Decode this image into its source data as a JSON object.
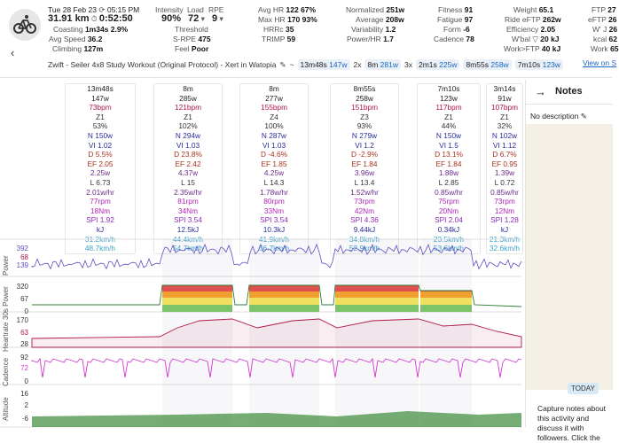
{
  "header": {
    "date": "Tue 28 Feb 23",
    "time": "05:15 PM",
    "distance": "31.91 km",
    "duration": "0:52:50",
    "coasting_label": "Coasting",
    "coasting_time": "1m34s",
    "coasting_pct": "2.9%",
    "avg_speed_label": "Avg Speed",
    "avg_speed": "36.2",
    "climbing_label": "Climbing",
    "climbing": "127m",
    "intensity_label": "Intensity",
    "intensity": "90%",
    "load_label": "Load",
    "load": "72",
    "rpe_label": "RPE",
    "rpe": "9",
    "threshold_label": "Threshold",
    "spre_label": "S-RPE",
    "spre": "475",
    "feel_label": "Feel",
    "feel": "Poor",
    "avghr_label": "Avg HR",
    "avghr": "122",
    "avghr_pct": "67%",
    "maxhr_label": "Max HR",
    "maxhr": "170",
    "maxhr_pct": "93%",
    "hrrc_label": "HRRc",
    "hrrc": "35",
    "trimp_label": "TRIMP",
    "trimp": "59",
    "normalized_label": "Normalized",
    "normalized": "251w",
    "average_label": "Average",
    "average": "208w",
    "variability_label": "Variability",
    "variability": "1.2",
    "powerhr_label": "Power/HR",
    "powerhr": "1.7",
    "fitness_label": "Fitness",
    "fitness": "91",
    "fatigue_label": "Fatigue",
    "fatigue": "97",
    "form_label": "Form",
    "form": "-6",
    "cadence_label": "Cadence",
    "cadence": "78",
    "weight_label": "Weight",
    "weight": "65.1",
    "rideeftp_label": "Ride eFTP",
    "rideeftp": "262w",
    "efficiency_label": "Efficiency",
    "efficiency": "2.05",
    "wbal_label": "W'bal ▽",
    "wbal": "20 kJ",
    "workftp_label": "Work>FTP",
    "workftp": "40 kJ",
    "ftp_label": "FTP",
    "ftp": "27",
    "eftp_label": "eFTP",
    "eftp": "26",
    "wj_label": "W' J",
    "wj": "26",
    "kcal_label": "kcal",
    "kcal": "62",
    "work_label": "Work",
    "work": "65",
    "view_on": "View on S"
  },
  "title_row": {
    "workout": "Zwift - Seiler 4x8 Study Workout (Original Protocol) - Xert in Watopia",
    "pencil_icon": "pencil-icon",
    "tilde": "~",
    "p1_time": "13m48s",
    "p1_w": "147w",
    "p2_mult": "2x",
    "p2_time": "8m",
    "p2_w": "281w",
    "p3_mult": "3x",
    "p3_time": "2m1s",
    "p3_w": "225w",
    "p4_time": "8m55s",
    "p4_w": "258w",
    "p5_time": "7m10s",
    "p5_w": "123w"
  },
  "intervals": [
    {
      "title": "13m48s",
      "w": "147w",
      "bpm": "73bpm",
      "z": "Z1",
      "pct": "53%",
      "n": "N 150w",
      "vi": "VI 1.02",
      "d": "D 5.5%",
      "ef": "EF 2.05",
      "wkg": "2.25w",
      "l": "L 6.73",
      "whr": "2.01w/hr",
      "rpm": "77rpm",
      "nm": "18Nm",
      "spi": "SPI 1.92",
      "kj": "kJ",
      "spd": "31.2km/h",
      "spd2": "48.7km/h"
    },
    {
      "title": "8m",
      "w": "285w",
      "bpm": "121bpm",
      "z": "Z1",
      "pct": "102%",
      "n": "N 294w",
      "vi": "VI 1.03",
      "d": "D 23.8%",
      "ef": "EF 2.42",
      "wkg": "4.37w",
      "l": "L 15",
      "whr": "2.35w/hr",
      "rpm": "81rpm",
      "nm": "34Nm",
      "spi": "SPI 3.54",
      "kj": "12.5kJ",
      "spd": "44.4km/h",
      "spd2": "54.7km/h"
    },
    {
      "title": "8m",
      "w": "277w",
      "bpm": "155bpm",
      "z": "Z4",
      "pct": "100%",
      "n": "N 287w",
      "vi": "VI 1.03",
      "d": "D -4.6%",
      "ef": "EF 1.85",
      "wkg": "4.25w",
      "l": "L 14.3",
      "whr": "1.78w/hr",
      "rpm": "80rpm",
      "nm": "33Nm",
      "spi": "SPI 3.54",
      "kj": "10.3kJ",
      "spd": "41.9km/h",
      "spd2": "56.7km/h"
    },
    {
      "title": "8m55s",
      "w": "258w",
      "bpm": "151bpm",
      "z": "Z3",
      "pct": "93%",
      "n": "N 279w",
      "vi": "VI 1.2",
      "d": "D -2.9%",
      "ef": "EF 1.84",
      "wkg": "3.96w",
      "l": "L 13.4",
      "whr": "1.52w/hr",
      "rpm": "73rpm",
      "nm": "42Nm",
      "spi": "SPI 4.36",
      "kj": "9.44kJ",
      "spd": "34.8km/h",
      "spd2": "52.9km/h"
    },
    {
      "title": "7m10s",
      "w": "123w",
      "bpm": "117bpm",
      "z": "Z1",
      "pct": "44%",
      "n": "N 150w",
      "vi": "VI 1.5",
      "d": "D 13.1%",
      "ef": "EF 1.84",
      "wkg": "1.88w",
      "l": "L 2.85",
      "whr": "0.85w/hr",
      "rpm": "75rpm",
      "nm": "20Nm",
      "spi": "SPI 2.04",
      "kj": "0.34kJ",
      "spd": "23.5km/h",
      "spd2": "53.6km/h"
    },
    {
      "title": "3m14s",
      "w": "91w",
      "bpm": "107bpm",
      "z": "Z1",
      "pct": "32%",
      "n": "N 102w",
      "vi": "VI 1.12",
      "d": "D 6.7%",
      "ef": "EF 0.95",
      "wkg": "1.39w",
      "l": "L 0.72",
      "whr": "0.85w/hr",
      "rpm": "73rpm",
      "nm": "12Nm",
      "spi": "SPI 1.28",
      "kj": "kJ",
      "spd": "21.3km/h",
      "spd2": "32.6km/h"
    }
  ],
  "charts": {
    "power": {
      "label": "Power",
      "ticks": [
        "392",
        "68",
        "139"
      ]
    },
    "power30": {
      "label": "30s Power",
      "ticks": [
        "320",
        "67",
        "0"
      ]
    },
    "heartrate": {
      "label": "Heartrate",
      "ticks": [
        "170",
        "63",
        "28"
      ]
    },
    "cadence": {
      "label": "Cadence",
      "ticks": [
        "92",
        "72",
        "0"
      ]
    },
    "altitude": {
      "label": "Altitude",
      "ticks": [
        "16",
        "2",
        "-6"
      ]
    }
  },
  "colors": {
    "power_line": "#5b4fc4",
    "hr_line": "#b0174a",
    "cadence_line": "#d23ad0",
    "altitude_fill": "#3a8a3a",
    "zone_red": "#e05050",
    "zone_orange": "#f0a030",
    "zone_yellow": "#f0e060",
    "zone_green": "#7cc36a"
  },
  "notes": {
    "arrow_icon": "arrow-right-icon",
    "title": "Notes",
    "description": "No description",
    "today": "TODAY",
    "prompt": "Capture notes about this activity and discuss it with followers. Click the"
  }
}
